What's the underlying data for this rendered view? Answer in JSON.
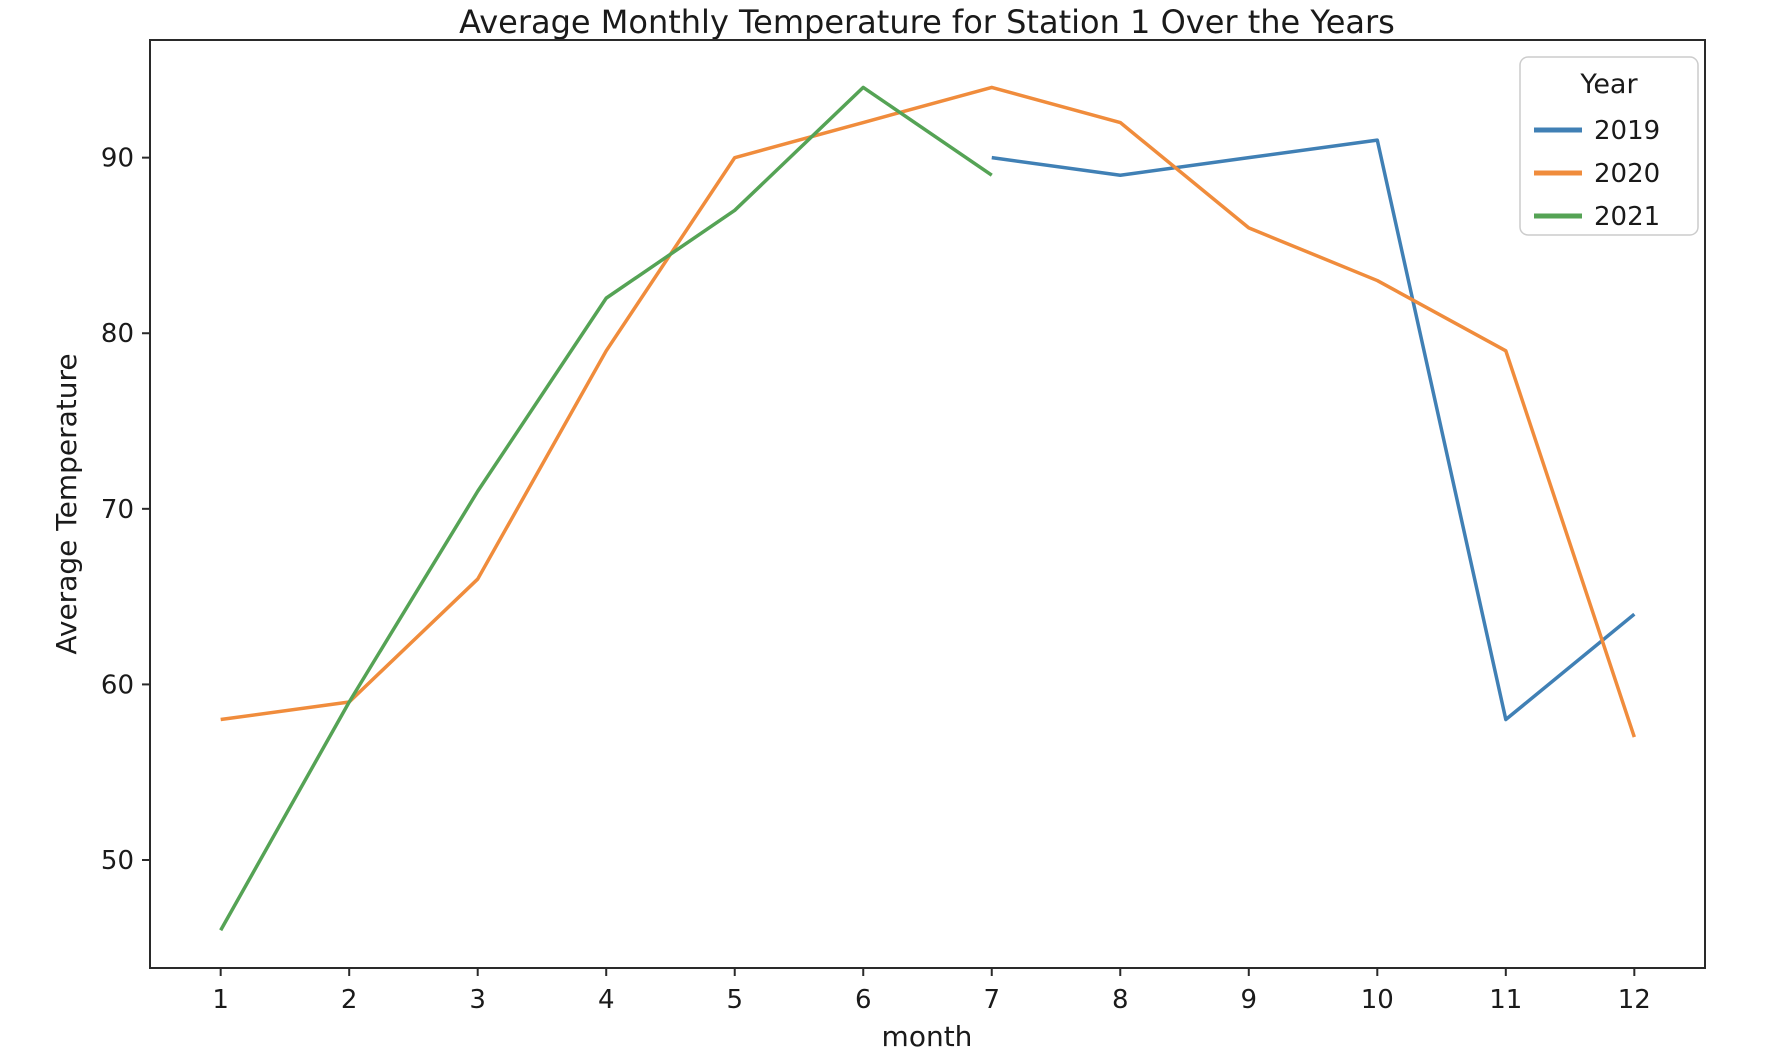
{
  "chart_data": {
    "type": "line",
    "title": "Average Monthly Temperature for Station 1 Over the Years",
    "xlabel": "month",
    "ylabel": "Average Temperature",
    "x_ticks": [
      1,
      2,
      3,
      4,
      5,
      6,
      7,
      8,
      9,
      10,
      11,
      12
    ],
    "y_ticks": [
      50,
      60,
      70,
      80,
      90
    ],
    "xlim": [
      0.45,
      12.55
    ],
    "ylim": [
      43.85,
      96.7
    ],
    "grid": false,
    "legend": {
      "title": "Year",
      "position": "upper right"
    },
    "series": [
      {
        "name": "2019",
        "color": "#4080b5",
        "x": [
          7,
          8,
          9,
          10,
          11,
          12
        ],
        "values": [
          90,
          89,
          90,
          91,
          58,
          64
        ]
      },
      {
        "name": "2020",
        "color": "#f08c3c",
        "x": [
          1,
          2,
          3,
          4,
          5,
          6,
          7,
          8,
          9,
          10,
          11,
          12
        ],
        "values": [
          58,
          59,
          66,
          79,
          90,
          92,
          94,
          92,
          86,
          83,
          79,
          57
        ]
      },
      {
        "name": "2021",
        "color": "#55a355",
        "x": [
          1,
          2,
          3,
          4,
          5,
          6,
          7
        ],
        "values": [
          46,
          59,
          71,
          82,
          87,
          94,
          89
        ]
      }
    ]
  }
}
